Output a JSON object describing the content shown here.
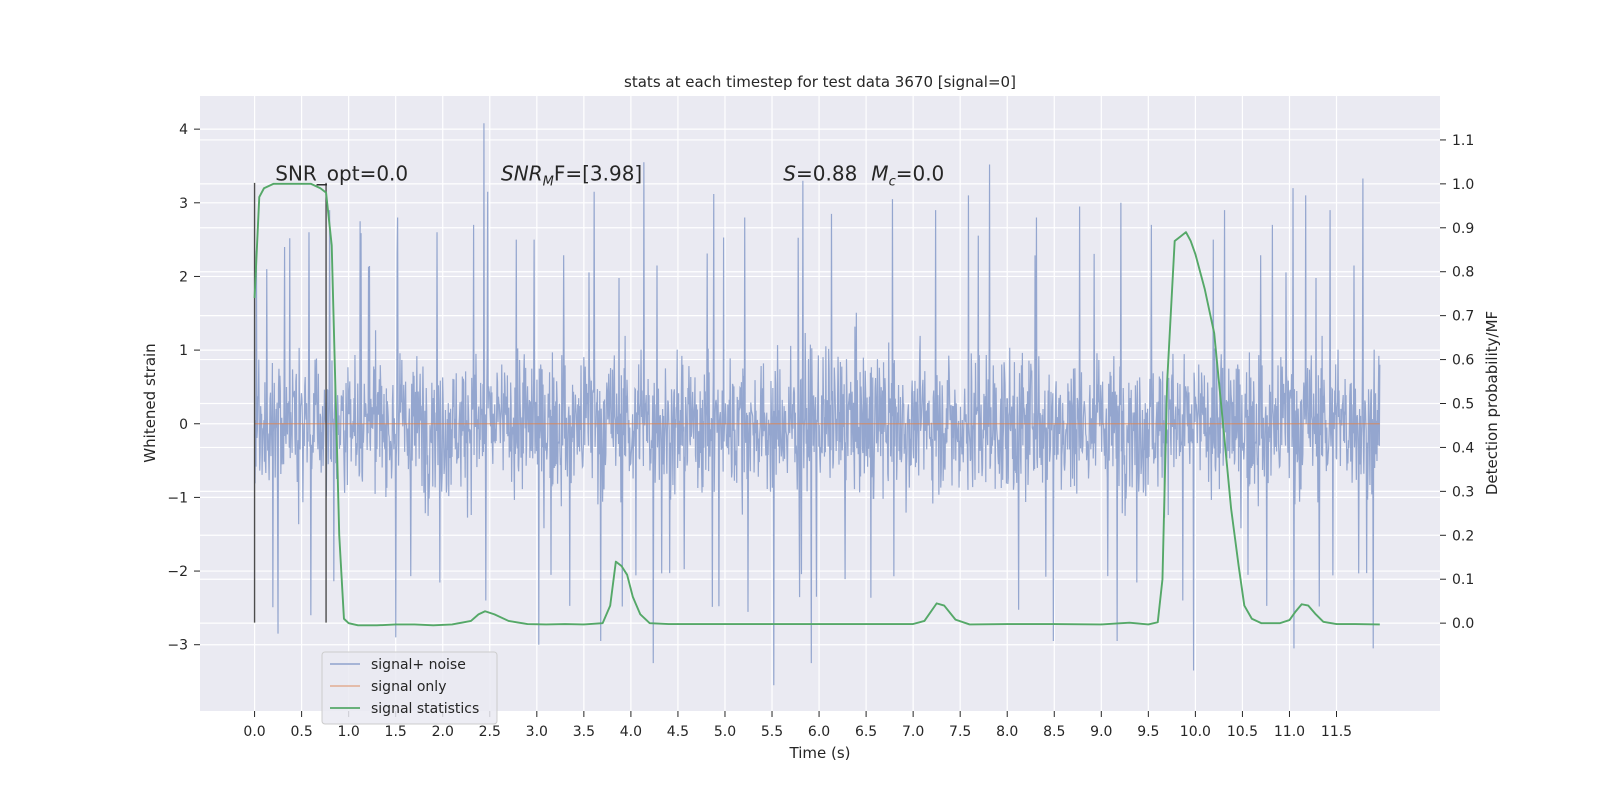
{
  "chart_data": {
    "type": "line",
    "title": "stats at each timestep for test data 3670 [signal=0]",
    "xlabel": "Time (s)",
    "ylabel": "Whitened strain",
    "y2label": "Detection probability/MF",
    "xlim": [
      -0.58,
      12.6
    ],
    "ylim": [
      -3.9,
      4.45
    ],
    "y2lim": [
      -0.2,
      1.2
    ],
    "grid": true,
    "legend_position": "lower-left",
    "x_ticks": [
      "0.0",
      "0.5",
      "1.0",
      "1.5",
      "2.0",
      "2.5",
      "3.0",
      "3.5",
      "4.0",
      "4.5",
      "5.0",
      "5.5",
      "6.0",
      "6.5",
      "7.0",
      "7.5",
      "8.0",
      "8.5",
      "9.0",
      "9.5",
      "10.0",
      "10.5",
      "11.0",
      "11.5"
    ],
    "y_ticks": [
      "4",
      "3",
      "2",
      "1",
      "0",
      "−1",
      "−2",
      "−3"
    ],
    "y2_ticks": [
      "1.1",
      "1.0",
      "0.9",
      "0.8",
      "0.7",
      "0.6",
      "0.5",
      "0.4",
      "0.3",
      "0.2",
      "0.1",
      "0.0"
    ],
    "annotations": {
      "snr_opt": {
        "text": "SNR_opt=0.0",
        "x": 0.22,
        "y": 3.3
      },
      "snr_mf": {
        "prefix": "SNR",
        "sub": "M",
        "suffix": "F=[3.98]",
        "x": 2.62,
        "y": 3.3
      },
      "s_mc": {
        "s_prefix": "S",
        "s_value": "=0.88",
        "m_prefix": "M",
        "m_sub": "c",
        "m_value": "=0.0",
        "x": 5.62,
        "y": 3.3
      }
    },
    "vertical_lines": [
      {
        "x": 0.0,
        "ymin": -2.7,
        "ymax": 3.27
      },
      {
        "x": 0.76,
        "ymin": -2.7,
        "ymax": 3.27
      }
    ],
    "series": [
      {
        "name": "signal+ noise",
        "color": "#8fa2cc",
        "axis": "left",
        "x_range": [
          0.0,
          11.96
        ],
        "envelope": {
          "inner_band": [
            -1.5,
            1.5
          ],
          "typical_extremes": [
            -2.4,
            2.5
          ]
        },
        "peaks": [
          {
            "x": 0.02,
            "y": 2.35
          },
          {
            "x": 0.13,
            "y": 2.1
          },
          {
            "x": 0.32,
            "y": 2.4
          },
          {
            "x": 0.58,
            "y": 2.6
          },
          {
            "x": 0.8,
            "y": 2.9
          },
          {
            "x": 1.12,
            "y": 2.75
          },
          {
            "x": 1.52,
            "y": 2.8
          },
          {
            "x": 1.94,
            "y": 2.6
          },
          {
            "x": 2.33,
            "y": 2.7
          },
          {
            "x": 2.44,
            "y": 4.08
          },
          {
            "x": 2.48,
            "y": 3.15
          },
          {
            "x": 2.97,
            "y": 2.5
          },
          {
            "x": 3.61,
            "y": 3.15
          },
          {
            "x": 4.14,
            "y": 3.55
          },
          {
            "x": 4.88,
            "y": 3.12
          },
          {
            "x": 5.21,
            "y": 2.8
          },
          {
            "x": 5.83,
            "y": 3.3
          },
          {
            "x": 6.13,
            "y": 2.85
          },
          {
            "x": 6.78,
            "y": 3.05
          },
          {
            "x": 7.24,
            "y": 2.9
          },
          {
            "x": 7.59,
            "y": 3.1
          },
          {
            "x": 7.81,
            "y": 3.52
          },
          {
            "x": 8.31,
            "y": 2.8
          },
          {
            "x": 8.77,
            "y": 2.95
          },
          {
            "x": 9.21,
            "y": 3.0
          },
          {
            "x": 9.53,
            "y": 2.7
          },
          {
            "x": 10.31,
            "y": 2.9
          },
          {
            "x": 10.82,
            "y": 2.7
          },
          {
            "x": 11.04,
            "y": 3.2
          },
          {
            "x": 11.17,
            "y": 3.1
          },
          {
            "x": 11.43,
            "y": 2.9
          },
          {
            "x": 11.78,
            "y": 3.33
          }
        ],
        "troughs": [
          {
            "x": 0.25,
            "y": -2.85
          },
          {
            "x": 0.6,
            "y": -2.6
          },
          {
            "x": 1.5,
            "y": -2.9
          },
          {
            "x": 3.02,
            "y": -3.0
          },
          {
            "x": 3.68,
            "y": -2.95
          },
          {
            "x": 4.24,
            "y": -3.25
          },
          {
            "x": 5.52,
            "y": -3.55
          },
          {
            "x": 5.92,
            "y": -3.25
          },
          {
            "x": 8.49,
            "y": -2.95
          },
          {
            "x": 9.17,
            "y": -2.95
          },
          {
            "x": 9.98,
            "y": -3.35
          },
          {
            "x": 11.05,
            "y": -3.05
          },
          {
            "x": 11.89,
            "y": -3.05
          }
        ]
      },
      {
        "name": "signal only",
        "color": "#dd8452",
        "axis": "left",
        "x": [
          0.0,
          11.96
        ],
        "y": [
          0.0,
          0.0
        ]
      },
      {
        "name": "signal statistics",
        "color": "#55a868",
        "axis": "right",
        "x": [
          0.0,
          0.05,
          0.1,
          0.2,
          0.3,
          0.4,
          0.5,
          0.6,
          0.7,
          0.76,
          0.82,
          0.9,
          0.95,
          1.0,
          1.1,
          1.3,
          1.5,
          1.7,
          1.9,
          2.1,
          2.3,
          2.38,
          2.45,
          2.55,
          2.7,
          2.9,
          3.1,
          3.3,
          3.5,
          3.7,
          3.78,
          3.84,
          3.9,
          3.96,
          4.02,
          4.1,
          4.2,
          4.4,
          5.0,
          6.0,
          7.0,
          7.12,
          7.25,
          7.33,
          7.45,
          7.6,
          8.0,
          8.5,
          9.0,
          9.3,
          9.5,
          9.6,
          9.65,
          9.7,
          9.78,
          9.84,
          9.9,
          9.95,
          10.0,
          10.1,
          10.2,
          10.3,
          10.38,
          10.46,
          10.52,
          10.6,
          10.7,
          10.9,
          11.0,
          11.06,
          11.13,
          11.2,
          11.28,
          11.36,
          11.5,
          11.7,
          11.96
        ],
        "y": [
          0.74,
          0.97,
          0.99,
          1.0,
          1.0,
          1.0,
          1.0,
          1.0,
          0.99,
          0.98,
          0.86,
          0.2,
          0.01,
          0.0,
          -0.005,
          -0.005,
          -0.003,
          -0.003,
          -0.005,
          -0.003,
          0.005,
          0.02,
          0.027,
          0.02,
          0.005,
          -0.002,
          -0.003,
          -0.002,
          -0.003,
          0.0,
          0.04,
          0.14,
          0.13,
          0.11,
          0.06,
          0.02,
          0.0,
          -0.002,
          -0.002,
          -0.002,
          -0.002,
          0.005,
          0.045,
          0.04,
          0.008,
          -0.003,
          -0.002,
          -0.002,
          -0.003,
          0.001,
          -0.003,
          0.002,
          0.1,
          0.55,
          0.87,
          0.88,
          0.89,
          0.87,
          0.84,
          0.76,
          0.66,
          0.44,
          0.26,
          0.13,
          0.04,
          0.01,
          0.0,
          0.0,
          0.007,
          0.025,
          0.043,
          0.04,
          0.02,
          0.003,
          -0.002,
          -0.002,
          -0.003
        ]
      }
    ]
  },
  "legend": {
    "items": [
      {
        "label": "signal+ noise",
        "color": "#8fa2cc"
      },
      {
        "label": "signal only",
        "color": "#dd8452"
      },
      {
        "label": "signal statistics",
        "color": "#55a868"
      }
    ]
  }
}
